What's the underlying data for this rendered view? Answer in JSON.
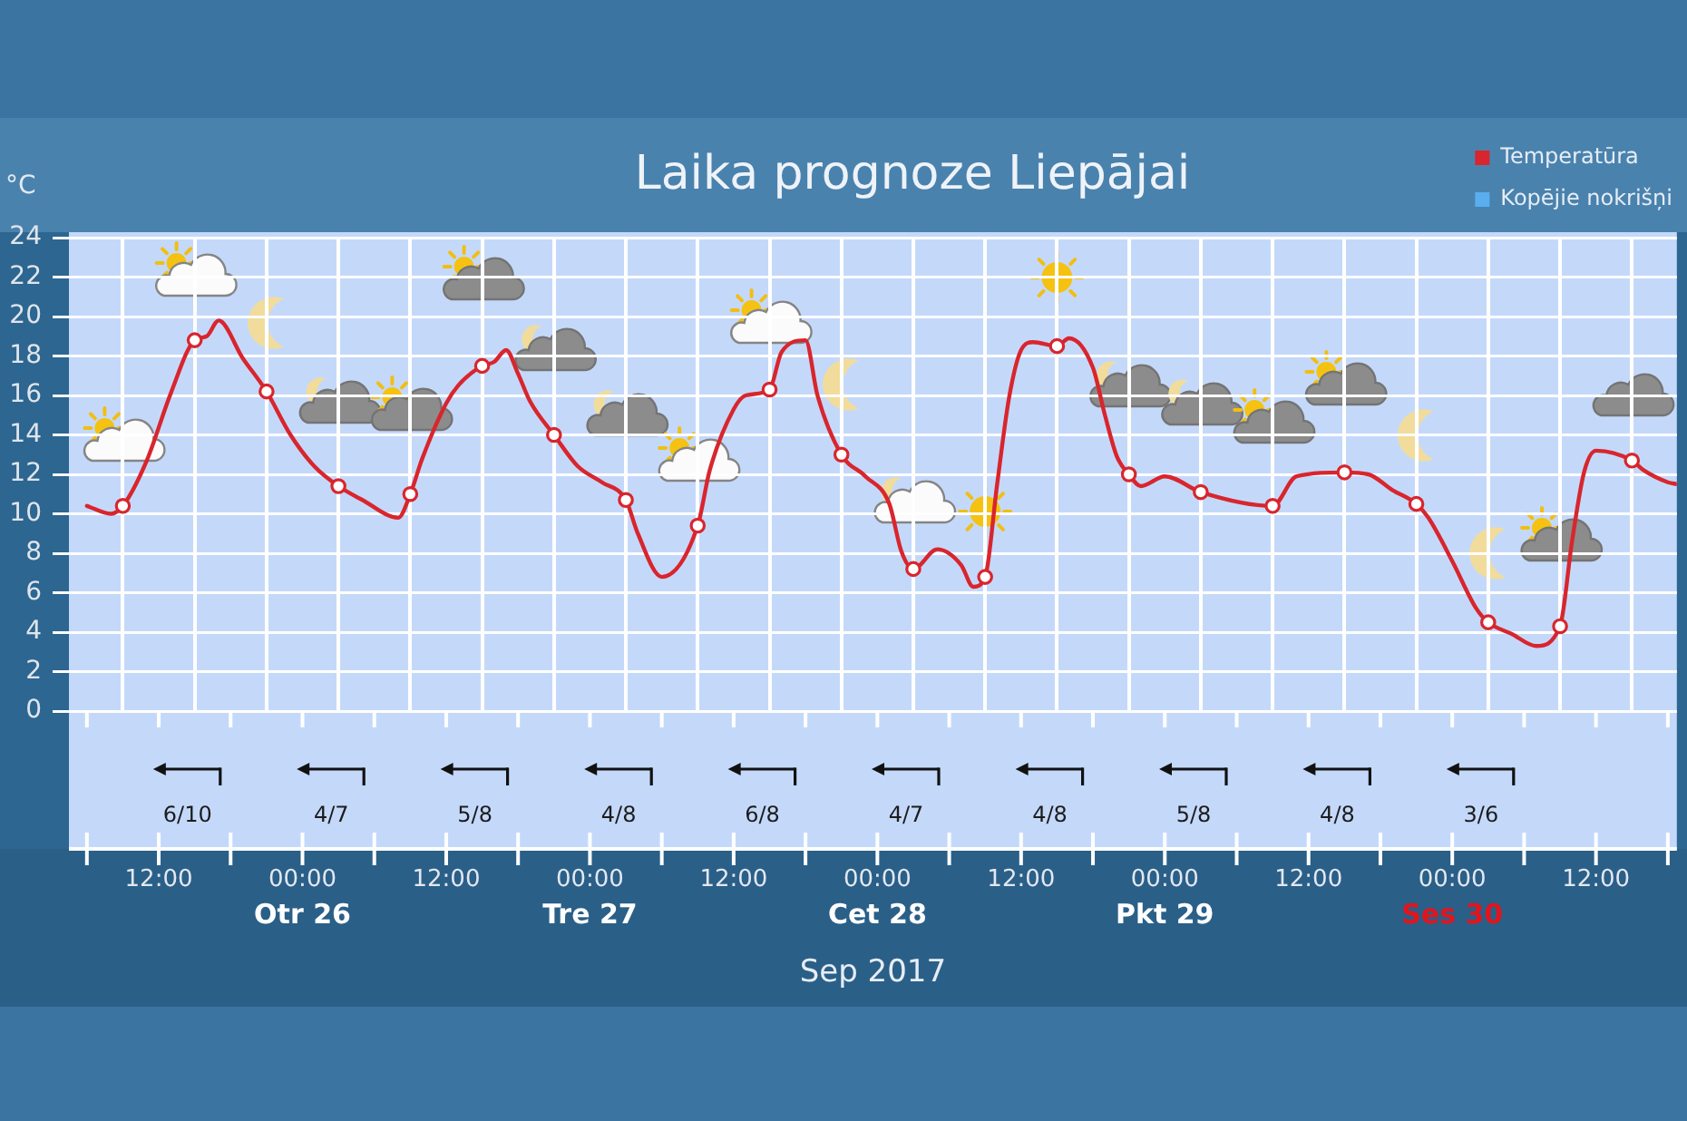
{
  "chart_data": {
    "type": "line",
    "title": "Laika prognoze Liepājai",
    "xlabel": "Sep 2017",
    "ylabel": "°C",
    "xlim": [
      "2017-09-25T04:30",
      "2017-09-30T18:45"
    ],
    "xticks": [
      {
        "value": "2017-09-25T06:00",
        "label": null
      },
      {
        "value": "2017-09-25T12:00",
        "label": "12:00"
      },
      {
        "value": "2017-09-25T18:00",
        "label": null
      },
      {
        "value": "2017-09-26T00:00",
        "label": "00:00\nOtr 26"
      },
      {
        "value": "2017-09-26T06:00",
        "label": null
      },
      {
        "value": "2017-09-26T12:00",
        "label": "12:00"
      },
      {
        "value": "2017-09-26T18:00",
        "label": null
      },
      {
        "value": "2017-09-27T00:00",
        "label": "00:00\nTre 27"
      },
      {
        "value": "2017-09-27T06:00",
        "label": null
      },
      {
        "value": "2017-09-27T12:00",
        "label": "12:00"
      },
      {
        "value": "2017-09-27T18:00",
        "label": null
      },
      {
        "value": "2017-09-28T00:00",
        "label": "00:00\nCet 28"
      },
      {
        "value": "2017-09-28T06:00",
        "label": null
      },
      {
        "value": "2017-09-28T12:00",
        "label": "12:00"
      },
      {
        "value": "2017-09-28T18:00",
        "label": null
      },
      {
        "value": "2017-09-29T00:00",
        "label": "00:00\nPkt 29"
      },
      {
        "value": "2017-09-29T06:00",
        "label": null
      },
      {
        "value": "2017-09-29T12:00",
        "label": "12:00"
      },
      {
        "value": "2017-09-29T18:00",
        "label": null
      },
      {
        "value": "2017-09-30T00:00",
        "label": "00:00\nSes 30"
      },
      {
        "value": "2017-09-30T06:00",
        "label": null
      },
      {
        "value": "2017-09-30T12:00",
        "label": "12:00"
      },
      {
        "value": "2017-09-30T18:00",
        "label": null
      }
    ],
    "ylim": [
      0,
      24
    ],
    "yticks": [
      0,
      2,
      4,
      6,
      8,
      10,
      12,
      14,
      16,
      18,
      20,
      22,
      24
    ],
    "grid": true,
    "legend": "top right",
    "series": [
      {
        "name": "Temperatūra",
        "color": "#d9252d",
        "marker": "none",
        "x": [
          "2017-09-25T06:00",
          "2017-09-25T08:00",
          "2017-09-25T09:00",
          "2017-09-25T11:00",
          "2017-09-25T13:00",
          "2017-09-25T15:00",
          "2017-09-25T16:00",
          "2017-09-25T17:00",
          "2017-09-25T19:00",
          "2017-09-25T21:00",
          "2017-09-25T23:00",
          "2017-09-26T01:00",
          "2017-09-26T03:00",
          "2017-09-26T05:00",
          "2017-09-26T08:00",
          "2017-09-26T09:00",
          "2017-09-26T10:00",
          "2017-09-26T12:00",
          "2017-09-26T13:00",
          "2017-09-26T15:00",
          "2017-09-26T16:00",
          "2017-09-26T17:00",
          "2017-09-26T18:00",
          "2017-09-26T19:00",
          "2017-09-26T21:00",
          "2017-09-26T23:00",
          "2017-09-27T01:00",
          "2017-09-27T03:00",
          "2017-09-27T04:00",
          "2017-09-27T06:00",
          "2017-09-27T09:00",
          "2017-09-27T10:00",
          "2017-09-27T12:00",
          "2017-09-27T13:00",
          "2017-09-27T15:00",
          "2017-09-27T16:00",
          "2017-09-27T18:00",
          "2017-09-27T19:00",
          "2017-09-27T21:00",
          "2017-09-27T23:00",
          "2017-09-28T01:00",
          "2017-09-28T02:00",
          "2017-09-28T03:00",
          "2017-09-28T05:00",
          "2017-09-28T07:00",
          "2017-09-28T08:00",
          "2017-09-28T09:00",
          "2017-09-28T10:00",
          "2017-09-28T11:00",
          "2017-09-28T12:00",
          "2017-09-28T13:00",
          "2017-09-28T15:00",
          "2017-09-28T16:00",
          "2017-09-28T18:00",
          "2017-09-28T19:00",
          "2017-09-28T20:00",
          "2017-09-28T21:00",
          "2017-09-28T22:00",
          "2017-09-29T00:00",
          "2017-09-29T03:00",
          "2017-09-29T09:00",
          "2017-09-29T11:00",
          "2017-09-29T15:00",
          "2017-09-29T17:00",
          "2017-09-29T19:00",
          "2017-09-29T21:00",
          "2017-09-29T22:00",
          "2017-09-30T00:00",
          "2017-09-30T02:00",
          "2017-09-30T03:00",
          "2017-09-30T05:00",
          "2017-09-30T07:00",
          "2017-09-30T09:00",
          "2017-09-30T10:00",
          "2017-09-30T11:00",
          "2017-09-30T12:00",
          "2017-09-30T15:00",
          "2017-09-30T16:00",
          "2017-09-30T18:00",
          "2017-09-30T18:45"
        ],
        "values": [
          10.4,
          10.0,
          10.4,
          12.7,
          16.1,
          18.8,
          19.0,
          19.8,
          17.9,
          16.2,
          14.0,
          12.4,
          11.4,
          10.7,
          9.8,
          11.0,
          12.8,
          15.6,
          16.5,
          17.5,
          17.7,
          18.3,
          17.1,
          15.7,
          14.0,
          12.4,
          11.6,
          10.7,
          9.0,
          6.8,
          9.4,
          12.2,
          15.3,
          16.0,
          16.3,
          18.2,
          18.8,
          16.0,
          13.0,
          11.9,
          10.5,
          8.1,
          7.2,
          8.2,
          7.4,
          6.3,
          6.8,
          11.5,
          15.9,
          18.3,
          18.7,
          18.5,
          18.9,
          17.4,
          15.0,
          12.9,
          12.0,
          11.4,
          11.9,
          11.1,
          10.4,
          11.9,
          12.1,
          12.0,
          11.2,
          10.5,
          9.8,
          7.6,
          5.2,
          4.5,
          3.9,
          3.3,
          4.3,
          8.6,
          12.1,
          13.2,
          12.7,
          12.2,
          11.6,
          11.5
        ]
      },
      {
        "type": "scatter",
        "color": "#d9252d",
        "marker": "circle",
        "x": [
          "2017-09-25T09:00",
          "2017-09-25T15:00",
          "2017-09-25T21:00",
          "2017-09-26T03:00",
          "2017-09-26T09:00",
          "2017-09-26T15:00",
          "2017-09-26T21:00",
          "2017-09-27T03:00",
          "2017-09-27T09:00",
          "2017-09-27T15:00",
          "2017-09-27T21:00",
          "2017-09-28T03:00",
          "2017-09-28T09:00",
          "2017-09-28T15:00",
          "2017-09-28T21:00",
          "2017-09-29T03:00",
          "2017-09-29T09:00",
          "2017-09-29T15:00",
          "2017-09-29T21:00",
          "2017-09-30T03:00",
          "2017-09-30T09:00",
          "2017-09-30T15:00"
        ],
        "values": [
          10.4,
          18.8,
          16.2,
          11.4,
          11.0,
          17.5,
          14.0,
          10.7,
          9.4,
          16.3,
          13.0,
          7.2,
          6.8,
          18.5,
          12.0,
          11.1,
          10.4,
          12.1,
          10.5,
          4.5,
          4.3,
          12.7
        ]
      },
      {
        "name": "Kopējie nokrišņi",
        "type": "bar",
        "color": "#5aaef0"
      }
    ],
    "annotations": [
      "6/10",
      "4/7",
      "5/8",
      "4/8",
      "6/8",
      "4/7",
      "4/8",
      "5/8",
      "4/8",
      "3/6"
    ]
  }
}
